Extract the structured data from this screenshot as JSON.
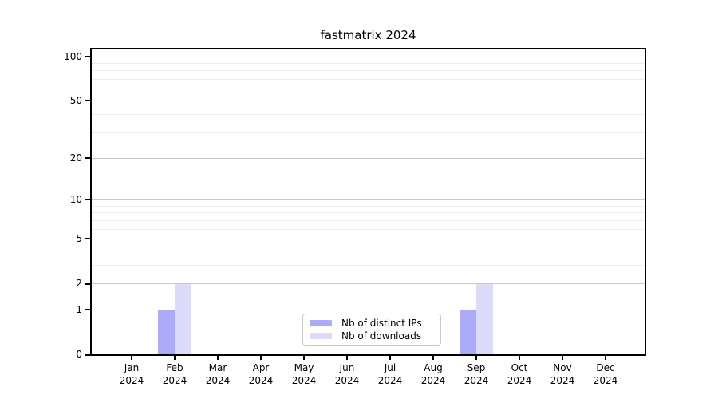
{
  "title": "fastmatrix 2024",
  "colors": {
    "distinct_ips": "#ababf8",
    "downloads": "#dcdcfa",
    "axis": "#000000",
    "major_grid": "#c9c9c9",
    "minor_grid": "#ececec",
    "legend_border": "#c9c9c9",
    "text": "#000000"
  },
  "chart_data": {
    "type": "bar",
    "title": "fastmatrix 2024",
    "categories": [
      "Jan",
      "Feb",
      "Mar",
      "Apr",
      "May",
      "Jun",
      "Jul",
      "Aug",
      "Sep",
      "Oct",
      "Nov",
      "Dec"
    ],
    "year_label": "2024",
    "series": [
      {
        "name": "Nb of distinct IPs",
        "color": "#ababf8",
        "values": [
          0,
          1,
          0,
          0,
          0,
          0,
          0,
          0,
          1,
          0,
          0,
          0
        ]
      },
      {
        "name": "Nb of downloads",
        "color": "#dcdcfa",
        "values": [
          0,
          2,
          0,
          0,
          0,
          0,
          0,
          0,
          2,
          0,
          0,
          0
        ]
      }
    ],
    "y_axis": {
      "scale": "log1p",
      "major_ticks": [
        0,
        1,
        2,
        5,
        10,
        20,
        50,
        100
      ],
      "minor_ticks": [
        3,
        4,
        6,
        7,
        8,
        9,
        30,
        40,
        60,
        70,
        80,
        90
      ],
      "range": [
        0,
        113
      ]
    },
    "xlabel": "",
    "ylabel": "",
    "grid": "horizontal",
    "legend_position": "bottom-center",
    "legend_entries": [
      "Nb of distinct IPs",
      "Nb of downloads"
    ]
  }
}
